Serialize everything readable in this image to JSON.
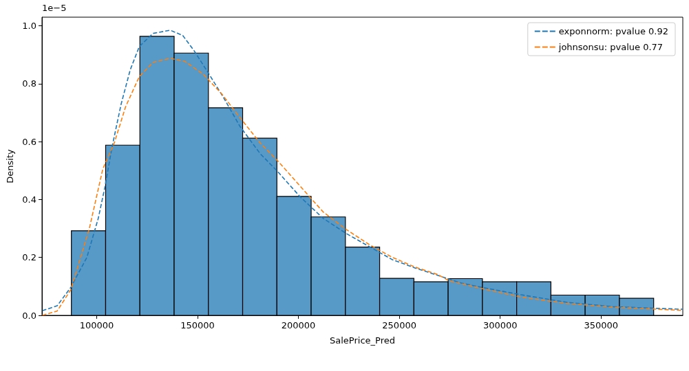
{
  "chart_data": {
    "type": "histogram",
    "xlabel": "SalePrice_Pred",
    "ylabel": "Density",
    "annotations": [
      "1e−5"
    ],
    "bins": [
      87470,
      104446,
      121422,
      138398,
      155374,
      172350,
      189326,
      206302,
      223278,
      240254,
      257230,
      274206,
      291182,
      308158,
      325134,
      342110,
      359086,
      376062
    ],
    "values": [
      0.292,
      0.588,
      0.964,
      0.906,
      0.717,
      0.612,
      0.411,
      0.34,
      0.236,
      0.128,
      0.116,
      0.127,
      0.116,
      0.116,
      0.07,
      0.07,
      0.059
    ],
    "color": "#5799c7",
    "series": [
      {
        "type": "line",
        "name": "exponnorm: pvalue 0.92",
        "color": "#1f77b4",
        "line_style": "dashed",
        "x": [
          73080,
          80430,
          87220,
          95140,
          100790,
          104180,
          107580,
          112100,
          116630,
          121150,
          127940,
          136420,
          142640,
          148300,
          155080,
          163000,
          170910,
          181090,
          189550,
          200910,
          212270,
          223630,
          234990,
          246350,
          257710,
          269070,
          280430,
          290650,
          310430,
          333110,
          355790,
          378470,
          390400
        ],
        "values": [
          0.016,
          0.033,
          0.097,
          0.2,
          0.335,
          0.446,
          0.58,
          0.729,
          0.848,
          0.929,
          0.974,
          0.985,
          0.967,
          0.914,
          0.84,
          0.751,
          0.654,
          0.558,
          0.498,
          0.409,
          0.335,
          0.283,
          0.238,
          0.193,
          0.164,
          0.138,
          0.112,
          0.097,
          0.071,
          0.045,
          0.03,
          0.024,
          0.021
        ]
      },
      {
        "type": "line",
        "name": "johnsonsu: pvalue 0.77",
        "color": "#ff7f0e",
        "line_style": "dashed",
        "x": [
          73080,
          80430,
          87220,
          96270,
          103050,
          108710,
          114360,
          121150,
          127940,
          136420,
          143770,
          152820,
          161870,
          170910,
          181090,
          189550,
          200910,
          212270,
          223630,
          234990,
          246350,
          257710,
          269070,
          274750,
          290650,
          310430,
          333110,
          355790,
          378470,
          390400
        ],
        "values": [
          0,
          0.015,
          0.089,
          0.297,
          0.506,
          0.595,
          0.721,
          0.825,
          0.874,
          0.888,
          0.877,
          0.833,
          0.766,
          0.684,
          0.595,
          0.535,
          0.446,
          0.357,
          0.297,
          0.245,
          0.201,
          0.167,
          0.141,
          0.119,
          0.093,
          0.063,
          0.041,
          0.028,
          0.021,
          0.017
        ]
      }
    ],
    "xlim": [
      72900,
      390500
    ],
    "xticks": [
      100000,
      150000,
      200000,
      250000,
      300000,
      350000
    ],
    "ylim": [
      0,
      1.03
    ],
    "yticks": [
      {
        "value": 0,
        "label": "0.0"
      },
      0.2,
      0.4,
      0.6,
      0.8,
      {
        "value": 1,
        "label": "1.0"
      }
    ],
    "grid": false,
    "legend": "top right"
  }
}
